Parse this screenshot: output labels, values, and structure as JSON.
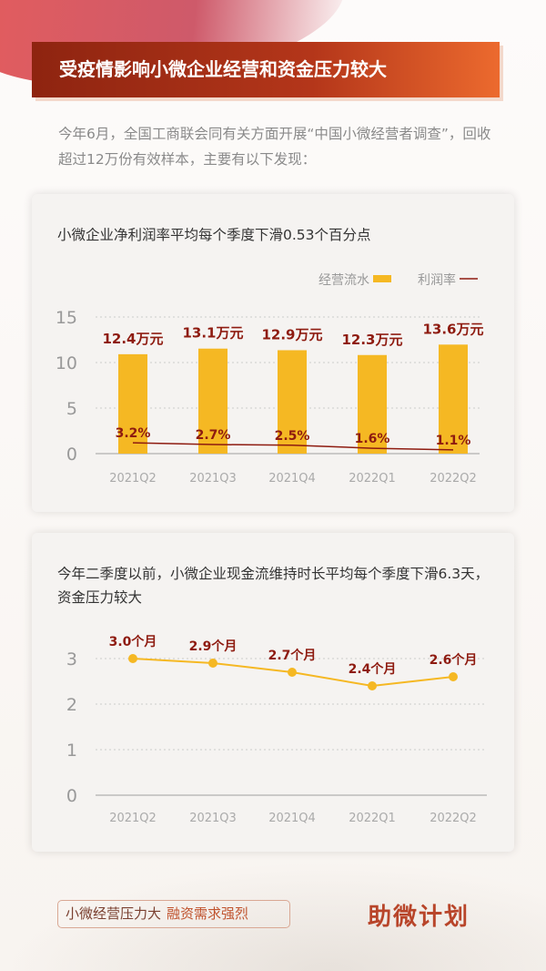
{
  "title": "受疫情影响小微企业经营和资金压力较大",
  "intro": "今年6月，全国工商联会同有关方面开展“中国小微经营者调查”，回收超过12万份有效样本，主要有以下发现：",
  "footer": {
    "tag_a": "小微经营压力大",
    "tag_b": "融资需求强烈",
    "logo": "助微计划"
  },
  "colors": {
    "bar": "#f5b823",
    "line": "#8e1b10",
    "label": "#8e1b10",
    "line2": "#f5b823"
  },
  "chart_data": [
    {
      "type": "bar+line",
      "title": "小微企业净利润率平均每个季度下滑0.53个百分点",
      "categories": [
        "2021Q2",
        "2021Q3",
        "2021Q4",
        "2022Q1",
        "2022Q2"
      ],
      "series": [
        {
          "name": "经营流水",
          "type": "bar",
          "values": [
            12.4,
            13.1,
            12.9,
            12.3,
            13.6
          ],
          "labels": [
            "12.4万元",
            "13.1万元",
            "12.9万元",
            "12.3万元",
            "13.6万元"
          ]
        },
        {
          "name": "利润率",
          "type": "line",
          "values": [
            3.2,
            2.7,
            2.5,
            1.6,
            1.1
          ],
          "labels": [
            "3.2%",
            "2.7%",
            "2.5%",
            "1.6%",
            "1.1%"
          ]
        }
      ],
      "yticks": [
        "0",
        "5",
        "10",
        "15"
      ],
      "ylim": [
        0,
        15
      ],
      "grid": true,
      "legend": "top-right"
    },
    {
      "type": "line",
      "title": "今年二季度以前，小微企业现金流维持时长平均每个季度下滑6.3天，资金压力较大",
      "categories": [
        "2021Q2",
        "2021Q3",
        "2021Q4",
        "2022Q1",
        "2022Q2"
      ],
      "values": [
        3.0,
        2.9,
        2.7,
        2.4,
        2.6
      ],
      "labels": [
        "3.0个月",
        "2.9个月",
        "2.7个月",
        "2.4个月",
        "2.6个月"
      ],
      "yticks": [
        "0",
        "1",
        "2",
        "3"
      ],
      "ylim": [
        0,
        3
      ],
      "grid": true
    }
  ]
}
